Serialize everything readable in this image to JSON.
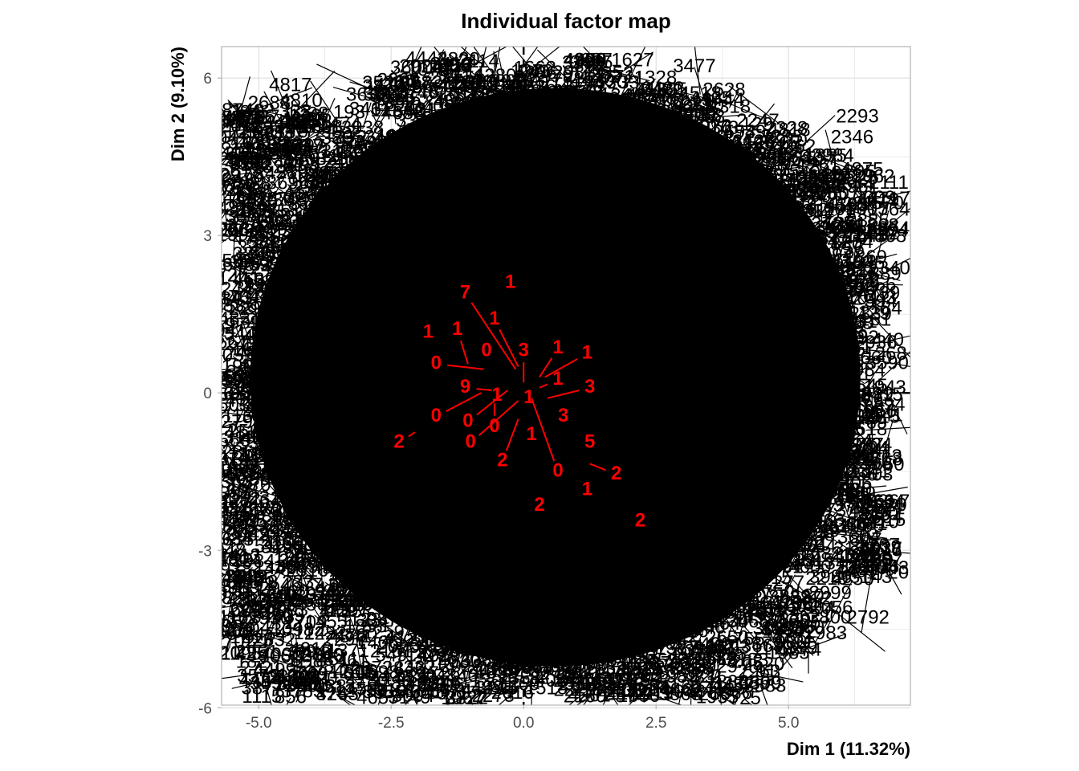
{
  "chart_data": {
    "type": "scatter",
    "title": "Individual factor map",
    "xlabel": "Dim 1 (11.32%)",
    "ylabel": "Dim 2 (9.10%)",
    "xlim": [
      -5.7,
      7.3
    ],
    "ylim": [
      -5.95,
      6.6
    ],
    "x_ticks": [
      -5.0,
      -2.5,
      0.0,
      2.5,
      5.0
    ],
    "x_tick_labels": [
      "-5.0",
      "-2.5",
      "0.0",
      "2.5",
      "5.0"
    ],
    "y_ticks": [
      -6,
      -3,
      0,
      3,
      6
    ],
    "y_tick_labels": [
      "-6",
      "-3",
      "0",
      "3",
      "6"
    ],
    "grid": true,
    "legend": "none",
    "colors": {
      "individuals": "#000000",
      "supplementary": "#ff0000",
      "grid": "#dddddd",
      "frame": "#b3b3b3"
    },
    "individual_labels_visible": [
      {
        "text": "2293",
        "x": 6.3,
        "y": 5.25
      },
      {
        "text": "2062",
        "x": 6.6,
        "y": 4.1
      },
      {
        "text": "2346",
        "x": 6.2,
        "y": 4.85
      },
      {
        "text": "2983",
        "x": 5.7,
        "y": -4.6
      },
      {
        "text": "2792",
        "x": 6.5,
        "y": -4.3
      },
      {
        "text": "4817",
        "x": -4.4,
        "y": 5.85
      },
      {
        "text": "4810",
        "x": -4.2,
        "y": 5.55
      },
      {
        "text": "2688",
        "x": -4.8,
        "y": 5.5
      },
      {
        "text": "1402",
        "x": -5.1,
        "y": 5.35
      }
    ],
    "series": [
      {
        "name": "",
        "points": [
          {
            "label": "1",
            "x": -0.25,
            "y": 2.1,
            "lx": -0.25,
            "ly": 2.1
          },
          {
            "label": "7",
            "x": -0.15,
            "y": 0.45,
            "lx": -1.1,
            "ly": 1.9
          },
          {
            "label": "1",
            "x": -0.1,
            "y": 0.5,
            "lx": -0.55,
            "ly": 1.4
          },
          {
            "label": "1",
            "x": -1.8,
            "y": 1.15,
            "lx": -1.8,
            "ly": 1.15
          },
          {
            "label": "1",
            "x": -1.05,
            "y": 0.55,
            "lx": -1.25,
            "ly": 1.2
          },
          {
            "label": "0",
            "x": -0.7,
            "y": 0.8,
            "lx": -0.7,
            "ly": 0.8
          },
          {
            "label": "3",
            "x": 0.0,
            "y": 0.2,
            "lx": 0.0,
            "ly": 0.8
          },
          {
            "label": "1",
            "x": 0.3,
            "y": 0.3,
            "lx": 0.65,
            "ly": 0.85
          },
          {
            "label": "1",
            "x": 0.4,
            "y": 0.3,
            "lx": 1.2,
            "ly": 0.75
          },
          {
            "label": "0",
            "x": -0.75,
            "y": 0.45,
            "lx": -1.65,
            "ly": 0.55
          },
          {
            "label": "1",
            "x": 0.3,
            "y": 0.1,
            "lx": 0.65,
            "ly": 0.25
          },
          {
            "label": "3",
            "x": 0.45,
            "y": -0.1,
            "lx": 1.25,
            "ly": 0.1
          },
          {
            "label": "9",
            "x": -0.6,
            "y": 0.05,
            "lx": -1.1,
            "ly": 0.1
          },
          {
            "label": "1",
            "x": -0.5,
            "y": -0.05,
            "lx": -0.5,
            "ly": -0.05
          },
          {
            "label": "0",
            "x": -0.8,
            "y": 0.0,
            "lx": -1.65,
            "ly": -0.45
          },
          {
            "label": "0",
            "x": -0.3,
            "y": 0.05,
            "lx": -1.05,
            "ly": -0.55
          },
          {
            "label": "3",
            "x": 0.5,
            "y": -0.45,
            "lx": 0.75,
            "ly": -0.45
          },
          {
            "label": "0",
            "x": -0.55,
            "y": -0.2,
            "lx": -0.55,
            "ly": -0.65
          },
          {
            "label": "0",
            "x": -0.1,
            "y": -0.15,
            "lx": -1.0,
            "ly": -0.95
          },
          {
            "label": "1",
            "x": 0.15,
            "y": -0.8,
            "lx": 0.15,
            "ly": -0.8
          },
          {
            "label": "1",
            "x": 0.1,
            "y": -0.1,
            "lx": 0.1,
            "ly": -0.1
          },
          {
            "label": "2",
            "x": -0.1,
            "y": -0.5,
            "lx": -0.4,
            "ly": -1.3
          },
          {
            "label": "0",
            "x": 0.15,
            "y": -0.1,
            "lx": 0.65,
            "ly": -1.5
          },
          {
            "label": "5",
            "x": 1.25,
            "y": -0.95,
            "lx": 1.25,
            "ly": -0.95
          },
          {
            "label": "2",
            "x": -2.05,
            "y": -0.75,
            "lx": -2.35,
            "ly": -0.95
          },
          {
            "label": "2",
            "x": 1.25,
            "y": -1.35,
            "lx": 1.75,
            "ly": -1.55
          },
          {
            "label": "1",
            "x": 1.2,
            "y": -1.85,
            "lx": 1.2,
            "ly": -1.85
          },
          {
            "label": "2",
            "x": 0.3,
            "y": -2.15,
            "lx": 0.3,
            "ly": -2.15
          },
          {
            "label": "2",
            "x": 2.2,
            "y": -2.45,
            "lx": 2.2,
            "ly": -2.45
          }
        ]
      }
    ]
  }
}
